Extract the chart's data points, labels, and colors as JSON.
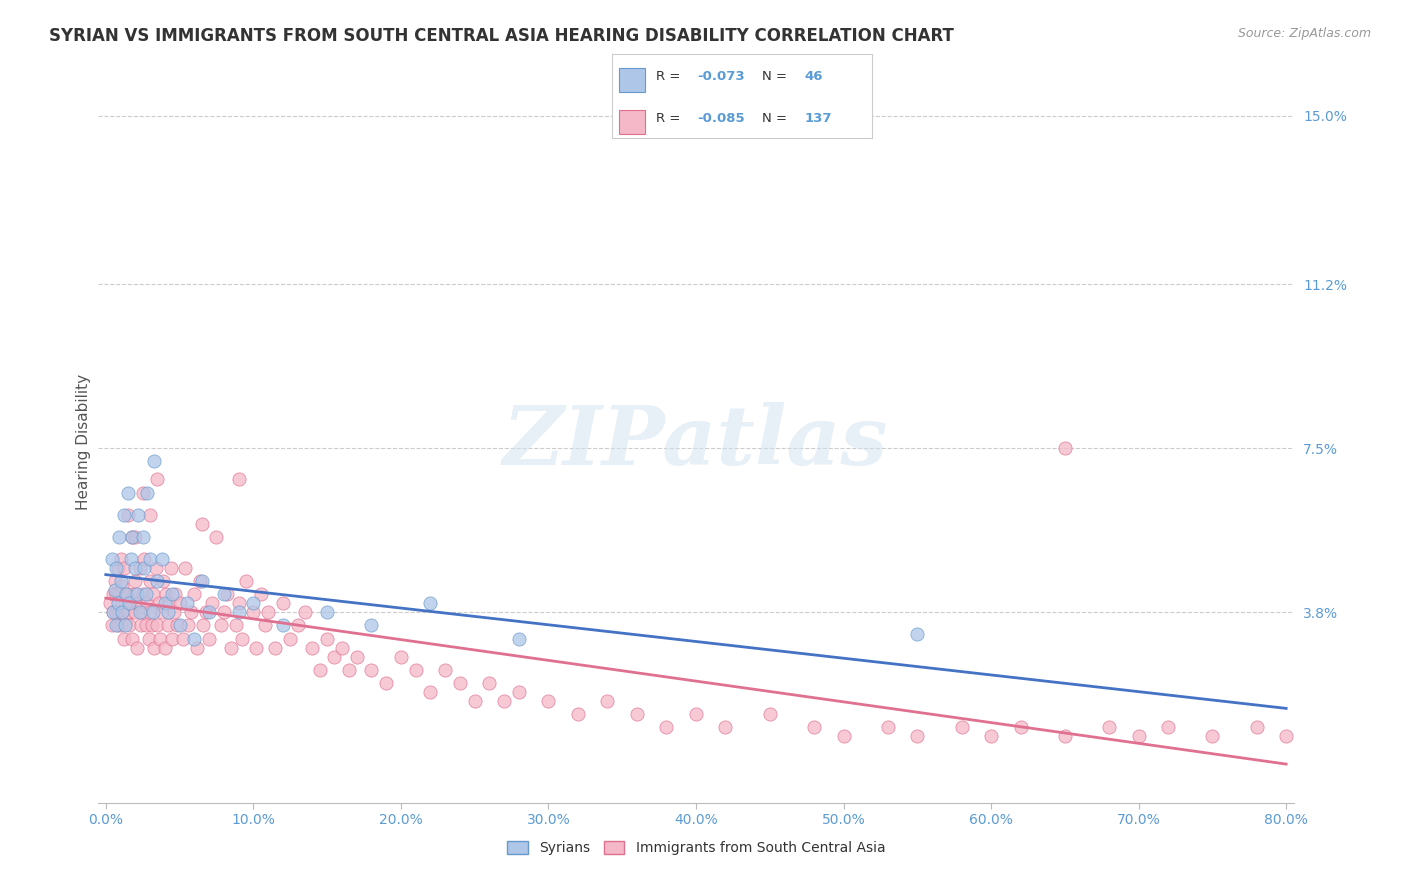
{
  "title": "SYRIAN VS IMMIGRANTS FROM SOUTH CENTRAL ASIA HEARING DISABILITY CORRELATION CHART",
  "source": "Source: ZipAtlas.com",
  "ylabel": "Hearing Disability",
  "xlim": [
    -0.005,
    0.805
  ],
  "ylim": [
    -0.005,
    0.158
  ],
  "yticks": [
    0.038,
    0.075,
    0.112,
    0.15
  ],
  "ytick_labels": [
    "3.8%",
    "7.5%",
    "11.2%",
    "15.0%"
  ],
  "xticks": [
    0.0,
    0.1,
    0.2,
    0.3,
    0.4,
    0.5,
    0.6,
    0.7,
    0.8
  ],
  "xtick_labels": [
    "0.0%",
    "10.0%",
    "20.0%",
    "30.0%",
    "40.0%",
    "50.0%",
    "60.0%",
    "70.0%",
    "80.0%"
  ],
  "syrians": {
    "name": "Syrians",
    "R": "-0.073",
    "N": "46",
    "color": "#aec6e8",
    "edge_color": "#6699cc",
    "line_color": "#4472c4",
    "x": [
      0.004,
      0.005,
      0.006,
      0.007,
      0.007,
      0.008,
      0.009,
      0.01,
      0.011,
      0.012,
      0.013,
      0.014,
      0.015,
      0.016,
      0.017,
      0.018,
      0.02,
      0.021,
      0.022,
      0.023,
      0.025,
      0.026,
      0.027,
      0.028,
      0.03,
      0.032,
      0.033,
      0.035,
      0.038,
      0.04,
      0.042,
      0.045,
      0.05,
      0.055,
      0.06,
      0.065,
      0.07,
      0.08,
      0.09,
      0.1,
      0.12,
      0.15,
      0.18,
      0.22,
      0.28,
      0.55
    ],
    "y": [
      0.05,
      0.038,
      0.043,
      0.048,
      0.035,
      0.04,
      0.055,
      0.045,
      0.038,
      0.06,
      0.035,
      0.042,
      0.065,
      0.04,
      0.05,
      0.055,
      0.048,
      0.042,
      0.06,
      0.038,
      0.055,
      0.048,
      0.042,
      0.065,
      0.05,
      0.038,
      0.072,
      0.045,
      0.05,
      0.04,
      0.038,
      0.042,
      0.035,
      0.04,
      0.032,
      0.045,
      0.038,
      0.042,
      0.038,
      0.04,
      0.035,
      0.038,
      0.035,
      0.04,
      0.032,
      0.033
    ]
  },
  "immigrants": {
    "name": "Immigrants from South Central Asia",
    "R": "-0.085",
    "N": "137",
    "color": "#f4b8c8",
    "edge_color": "#e07090",
    "line_color": "#e07090",
    "x": [
      0.003,
      0.004,
      0.005,
      0.005,
      0.006,
      0.007,
      0.007,
      0.008,
      0.008,
      0.009,
      0.009,
      0.01,
      0.01,
      0.011,
      0.011,
      0.012,
      0.012,
      0.013,
      0.014,
      0.015,
      0.015,
      0.016,
      0.017,
      0.018,
      0.018,
      0.019,
      0.02,
      0.02,
      0.021,
      0.022,
      0.023,
      0.024,
      0.025,
      0.025,
      0.026,
      0.027,
      0.028,
      0.029,
      0.03,
      0.03,
      0.031,
      0.032,
      0.033,
      0.034,
      0.035,
      0.036,
      0.037,
      0.038,
      0.039,
      0.04,
      0.041,
      0.042,
      0.043,
      0.044,
      0.045,
      0.046,
      0.047,
      0.048,
      0.05,
      0.052,
      0.054,
      0.056,
      0.058,
      0.06,
      0.062,
      0.064,
      0.066,
      0.068,
      0.07,
      0.072,
      0.075,
      0.078,
      0.08,
      0.082,
      0.085,
      0.088,
      0.09,
      0.092,
      0.095,
      0.1,
      0.102,
      0.105,
      0.108,
      0.11,
      0.115,
      0.12,
      0.125,
      0.13,
      0.135,
      0.14,
      0.145,
      0.15,
      0.155,
      0.16,
      0.165,
      0.17,
      0.18,
      0.19,
      0.2,
      0.21,
      0.22,
      0.23,
      0.24,
      0.25,
      0.26,
      0.27,
      0.28,
      0.3,
      0.32,
      0.34,
      0.36,
      0.38,
      0.4,
      0.42,
      0.45,
      0.48,
      0.5,
      0.53,
      0.55,
      0.58,
      0.6,
      0.62,
      0.65,
      0.68,
      0.7,
      0.72,
      0.75,
      0.78,
      0.8,
      0.015,
      0.02,
      0.025,
      0.03,
      0.035,
      0.065,
      0.09,
      0.65
    ],
    "y": [
      0.04,
      0.035,
      0.042,
      0.038,
      0.045,
      0.038,
      0.042,
      0.035,
      0.048,
      0.038,
      0.042,
      0.035,
      0.05,
      0.038,
      0.044,
      0.032,
      0.048,
      0.04,
      0.036,
      0.042,
      0.038,
      0.035,
      0.04,
      0.055,
      0.032,
      0.042,
      0.038,
      0.045,
      0.03,
      0.04,
      0.048,
      0.035,
      0.042,
      0.038,
      0.05,
      0.035,
      0.04,
      0.032,
      0.045,
      0.038,
      0.035,
      0.042,
      0.03,
      0.048,
      0.035,
      0.04,
      0.032,
      0.038,
      0.045,
      0.03,
      0.042,
      0.035,
      0.04,
      0.048,
      0.032,
      0.038,
      0.042,
      0.035,
      0.04,
      0.032,
      0.048,
      0.035,
      0.038,
      0.042,
      0.03,
      0.045,
      0.035,
      0.038,
      0.032,
      0.04,
      0.055,
      0.035,
      0.038,
      0.042,
      0.03,
      0.035,
      0.04,
      0.032,
      0.045,
      0.038,
      0.03,
      0.042,
      0.035,
      0.038,
      0.03,
      0.04,
      0.032,
      0.035,
      0.038,
      0.03,
      0.025,
      0.032,
      0.028,
      0.03,
      0.025,
      0.028,
      0.025,
      0.022,
      0.028,
      0.025,
      0.02,
      0.025,
      0.022,
      0.018,
      0.022,
      0.018,
      0.02,
      0.018,
      0.015,
      0.018,
      0.015,
      0.012,
      0.015,
      0.012,
      0.015,
      0.012,
      0.01,
      0.012,
      0.01,
      0.012,
      0.01,
      0.012,
      0.01,
      0.012,
      0.01,
      0.012,
      0.01,
      0.012,
      0.01,
      0.06,
      0.055,
      0.065,
      0.06,
      0.068,
      0.058,
      0.068,
      0.075
    ]
  },
  "legend_box_colors": [
    "#aec6e8",
    "#f4b8c8"
  ],
  "legend_edge_colors": [
    "#6699cc",
    "#e07090"
  ],
  "legend_R_values": [
    "-0.073",
    "-0.085"
  ],
  "legend_N_values": [
    "46",
    "137"
  ],
  "legend_names": [
    "Syrians",
    "Immigrants from South Central Asia"
  ],
  "watermark": "ZIPatlas",
  "bg_color": "#ffffff",
  "grid_color": "#cccccc",
  "tick_color": "#5b9bd5",
  "title_fontsize": 12,
  "label_fontsize": 11,
  "tick_fontsize": 10
}
